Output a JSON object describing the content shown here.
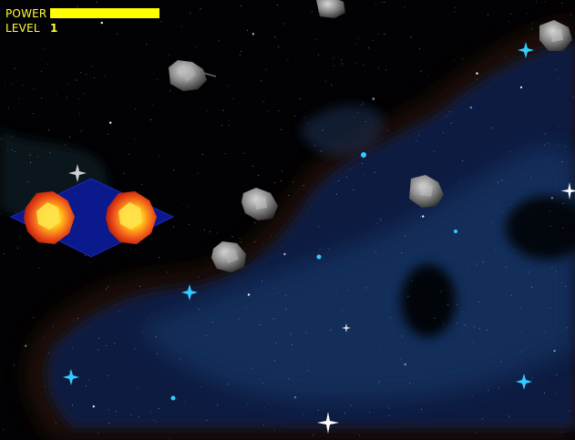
{
  "hud": {
    "power_label": "POWER",
    "level_label": "LEVEL",
    "level_value": "1",
    "power_fraction": 1.0,
    "power_color": "#ffff00",
    "text_color": "#ffff33"
  },
  "colors": {
    "space": "#020204",
    "nebula": "#0c1f44",
    "nebula_edge": "#3a1a10",
    "ship_body": "#0a1a8c",
    "fireball_outer": "#e23a10",
    "fireball_inner": "#ffd21a",
    "asteroid": "#8a8a8a",
    "star_cyan": "#33ccff"
  },
  "sprites": {
    "player_ship": "player-ship",
    "thruster": "fireball-icon",
    "asteroid": "asteroid-icon",
    "star": "sparkle-star-icon"
  }
}
